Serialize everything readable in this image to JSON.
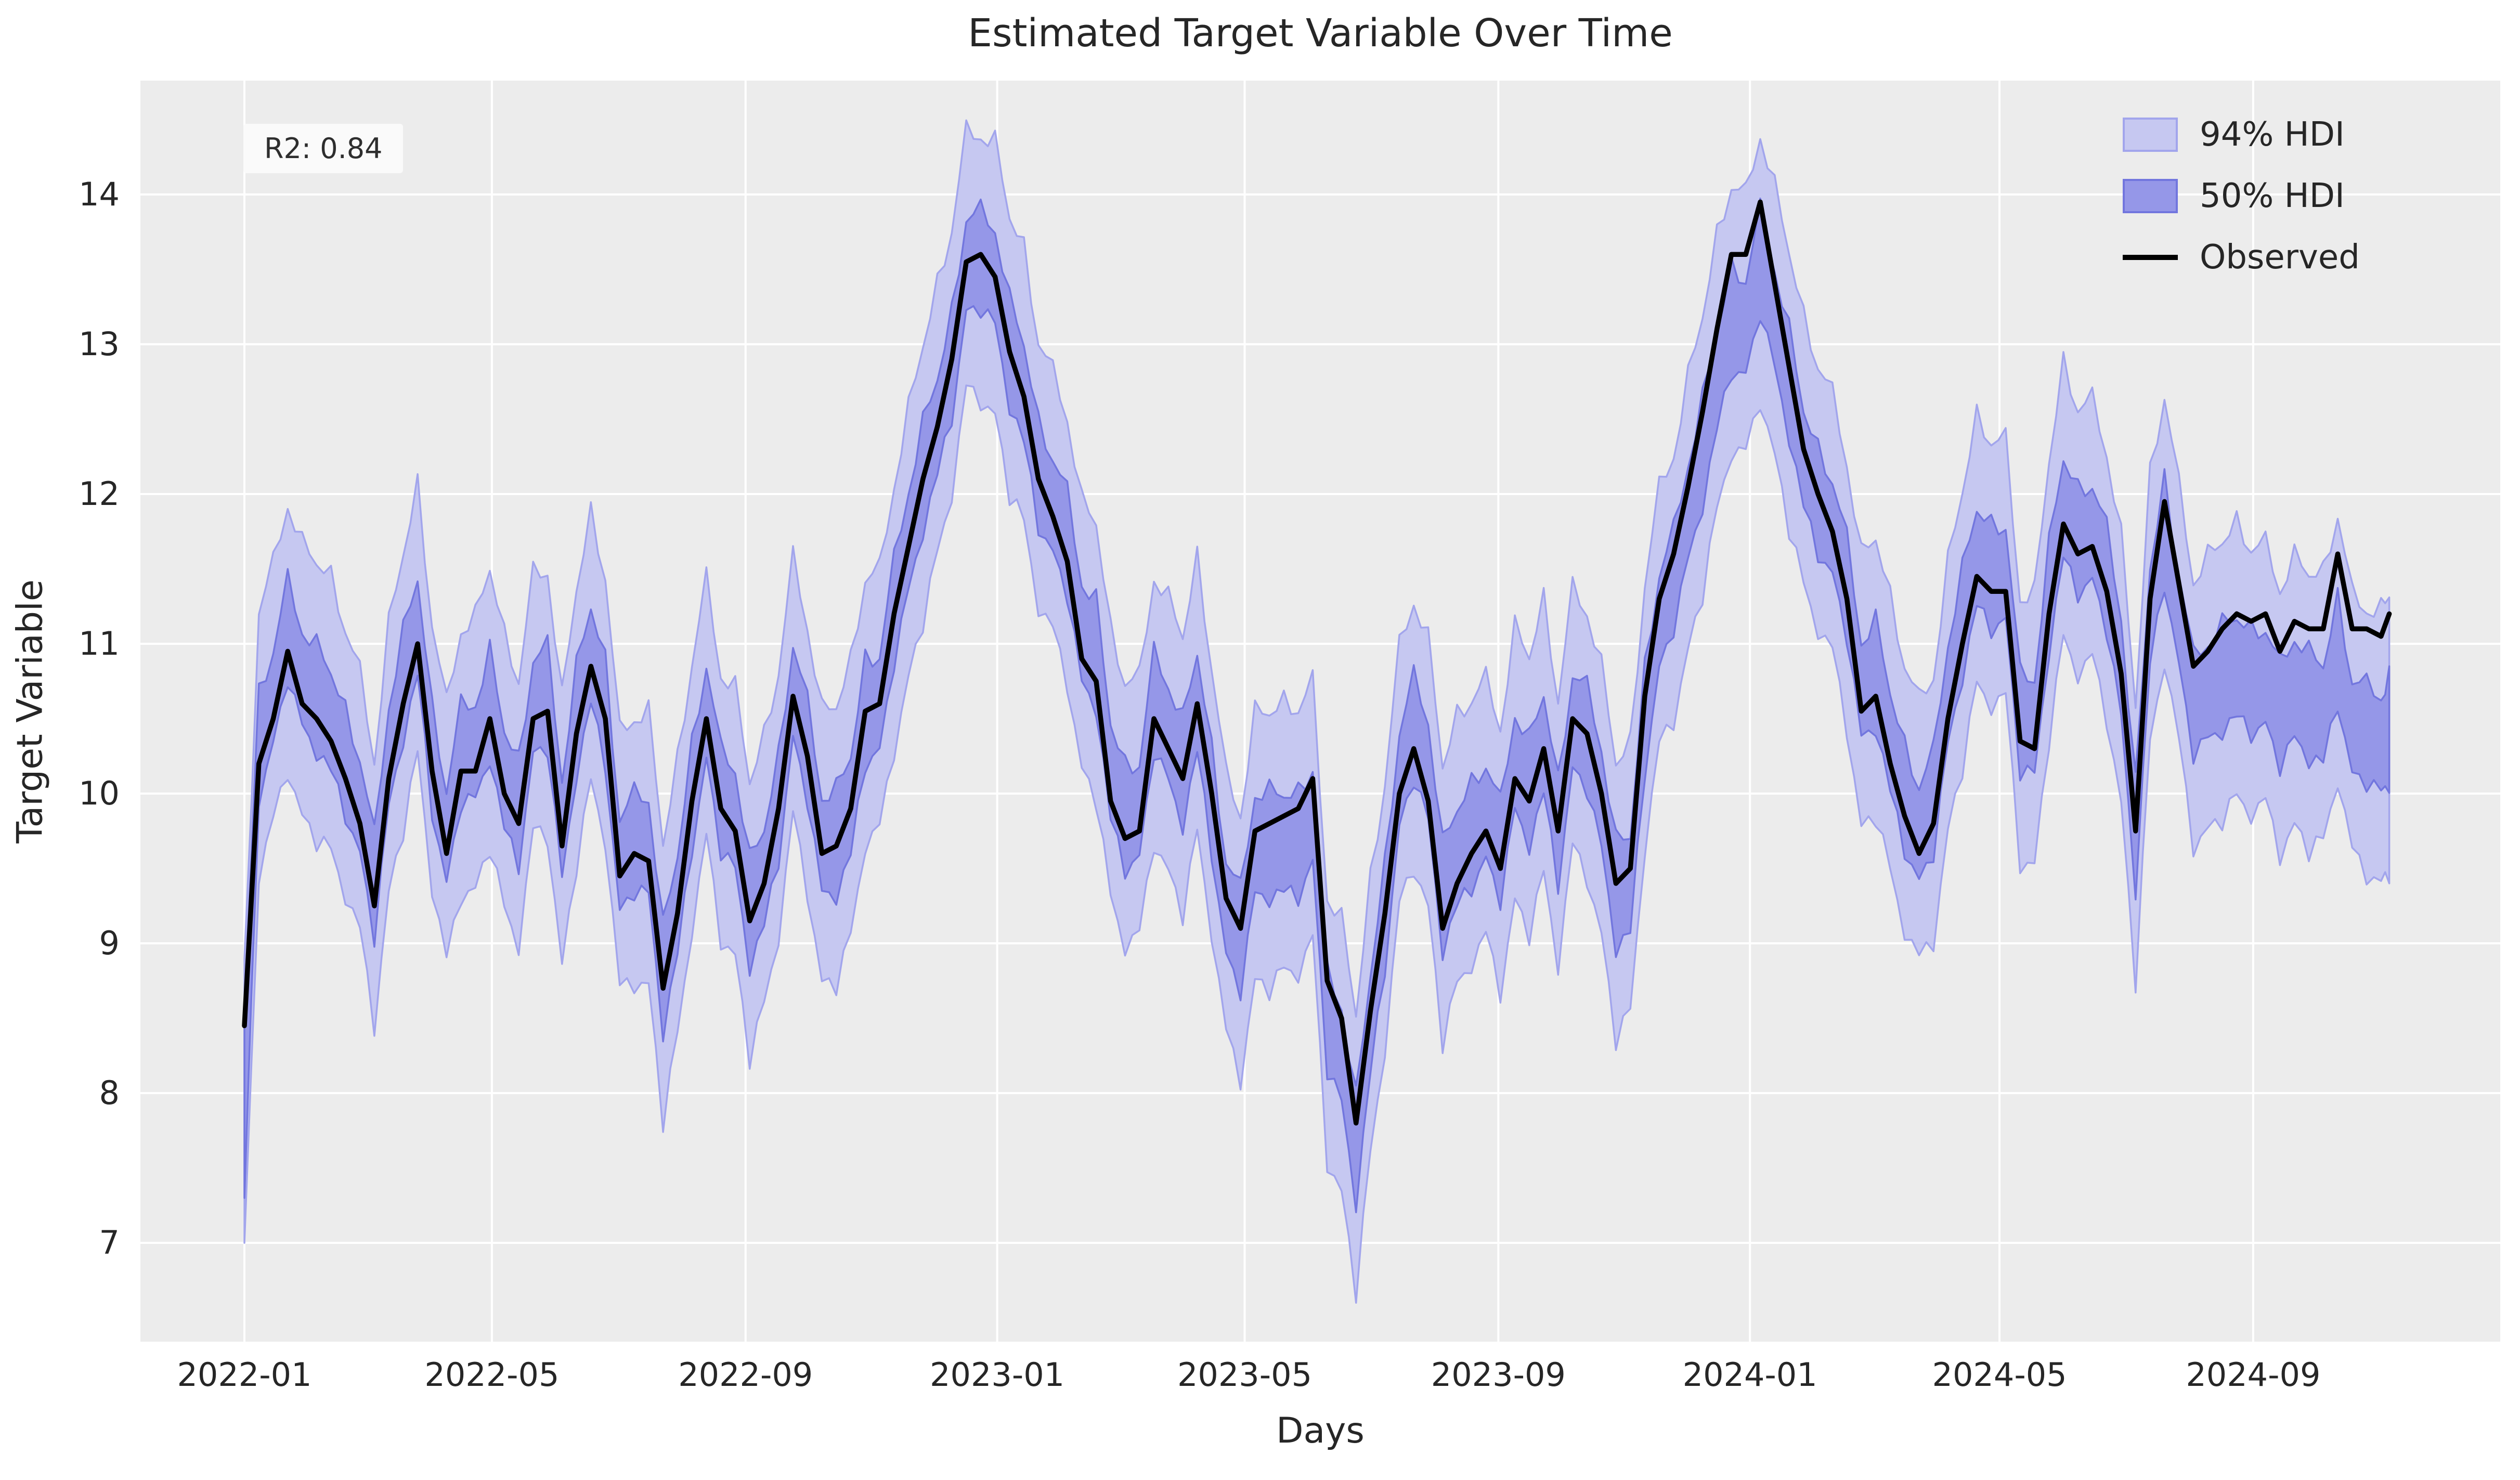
{
  "chart_data": {
    "type": "line",
    "title": "Estimated Target Variable Over Time",
    "xlabel": "Days",
    "ylabel": "Target Variable",
    "annotation": "R2: 0.84",
    "grid": true,
    "legend_position": "upper right",
    "legend": [
      {
        "label": "94% HDI",
        "type": "band"
      },
      {
        "label": "50% HDI",
        "type": "band"
      },
      {
        "label": "Observed",
        "type": "line"
      }
    ],
    "colors": {
      "plot_bg": "#ececec",
      "grid": "#ffffff",
      "text": "#262626",
      "observed": "#000000",
      "hdi94_fill": "#c6c8f1",
      "hdi94_edge": "#a2a5ec",
      "hdi50_fill": "#9597e8",
      "hdi50_edge": "#7276de",
      "annotation_bg": "#fafafa"
    },
    "x_start_date": "2022-01-01",
    "x_ticks": [
      {
        "day": 0,
        "label": "2022-01"
      },
      {
        "day": 120,
        "label": "2022-05"
      },
      {
        "day": 243,
        "label": "2022-09"
      },
      {
        "day": 365,
        "label": "2023-01"
      },
      {
        "day": 485,
        "label": "2023-05"
      },
      {
        "day": 608,
        "label": "2023-09"
      },
      {
        "day": 730,
        "label": "2024-01"
      },
      {
        "day": 851,
        "label": "2024-05"
      },
      {
        "day": 974,
        "label": "2024-09"
      }
    ],
    "y_ticks": [
      7,
      8,
      9,
      10,
      11,
      12,
      13,
      14
    ],
    "ylim": [
      6.34,
      14.76
    ],
    "xlim_days": [
      -52,
      1093
    ],
    "series": {
      "days": [
        0,
        7,
        14,
        21,
        28,
        35,
        42,
        49,
        56,
        63,
        70,
        77,
        84,
        91,
        98,
        105,
        112,
        119,
        126,
        133,
        140,
        147,
        154,
        161,
        168,
        175,
        182,
        189,
        196,
        203,
        210,
        217,
        224,
        231,
        238,
        245,
        252,
        259,
        266,
        273,
        280,
        287,
        294,
        301,
        308,
        315,
        322,
        329,
        336,
        343,
        350,
        357,
        364,
        371,
        378,
        385,
        392,
        399,
        406,
        413,
        420,
        427,
        434,
        441,
        448,
        455,
        462,
        469,
        476,
        483,
        490,
        497,
        504,
        511,
        518,
        525,
        532,
        539,
        546,
        553,
        560,
        567,
        574,
        581,
        588,
        595,
        602,
        609,
        616,
        623,
        630,
        637,
        644,
        651,
        658,
        665,
        672,
        679,
        686,
        693,
        700,
        707,
        714,
        721,
        728,
        735,
        742,
        749,
        756,
        763,
        770,
        777,
        784,
        791,
        798,
        805,
        812,
        819,
        826,
        833,
        840,
        847,
        854,
        861,
        868,
        875,
        882,
        889,
        896,
        903,
        910,
        917,
        924,
        931,
        938,
        945,
        952,
        959,
        966,
        973,
        980,
        987,
        994,
        1001,
        1008,
        1015,
        1022,
        1029,
        1036,
        1040
      ],
      "observed": [
        8.45,
        10.2,
        10.5,
        10.95,
        10.6,
        10.5,
        10.35,
        10.1,
        9.8,
        9.25,
        10.1,
        10.6,
        11.0,
        10.15,
        9.6,
        10.15,
        10.15,
        10.5,
        10.0,
        9.8,
        10.5,
        10.55,
        9.65,
        10.4,
        10.85,
        10.5,
        9.45,
        9.6,
        9.55,
        8.7,
        9.2,
        9.95,
        10.5,
        9.9,
        9.75,
        9.15,
        9.4,
        9.9,
        10.65,
        10.25,
        9.6,
        9.65,
        9.9,
        10.55,
        10.6,
        11.2,
        11.65,
        12.1,
        12.45,
        12.9,
        13.55,
        13.6,
        13.45,
        12.95,
        12.65,
        12.1,
        11.85,
        11.55,
        10.9,
        10.75,
        9.95,
        9.7,
        9.75,
        10.5,
        10.3,
        10.1,
        10.6,
        10.0,
        9.3,
        9.1,
        9.75,
        9.8,
        9.85,
        9.9,
        10.1,
        8.75,
        8.5,
        7.8,
        8.55,
        9.2,
        10.0,
        10.3,
        9.95,
        9.1,
        9.4,
        9.6,
        9.75,
        9.5,
        10.1,
        9.95,
        10.3,
        9.75,
        10.5,
        10.4,
        10.0,
        9.4,
        9.5,
        10.65,
        11.3,
        11.6,
        12.05,
        12.55,
        13.1,
        13.6,
        13.6,
        13.95,
        13.4,
        12.85,
        12.3,
        12.0,
        11.75,
        11.3,
        10.55,
        10.65,
        10.2,
        9.85,
        9.6,
        9.8,
        10.5,
        11.0,
        11.45,
        11.35,
        11.35,
        10.35,
        10.3,
        11.2,
        11.8,
        11.6,
        11.65,
        11.35,
        10.8,
        9.75,
        11.3,
        11.95,
        11.4,
        10.85,
        10.95,
        11.1,
        11.2,
        11.15,
        11.2,
        10.95,
        11.15,
        11.1,
        11.1,
        11.6,
        11.1,
        11.1,
        11.05,
        11.2
      ]
    },
    "hdi_bands": {
      "h50": 0.36,
      "h94": 0.92,
      "bias_points": [
        [
          0,
          0.15
        ],
        [
          340,
          0.0
        ],
        [
          360,
          -0.05
        ],
        [
          420,
          0.2
        ],
        [
          530,
          -0.3
        ],
        [
          560,
          0.1
        ],
        [
          580,
          0.2
        ],
        [
          700,
          -0.2
        ],
        [
          730,
          -0.5
        ],
        [
          750,
          -0.1
        ],
        [
          790,
          0.15
        ],
        [
          900,
          0.1
        ],
        [
          940,
          -0.25
        ],
        [
          990,
          -0.45
        ],
        [
          1040,
          -0.78
        ]
      ],
      "first_point": {
        "mean": 7.95,
        "h50": 0.65,
        "h94": 0.95
      },
      "jitter": [
        0.1,
        -0.07,
        0.05,
        -0.11,
        0.09,
        -0.03,
        0.12,
        -0.08,
        0.04,
        -0.1,
        0.07,
        -0.05
      ]
    }
  }
}
